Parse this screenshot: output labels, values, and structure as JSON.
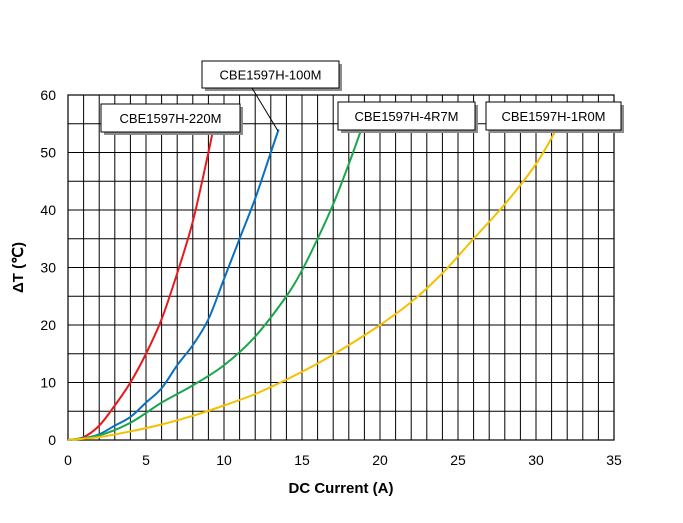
{
  "chart_data": {
    "type": "line",
    "title": "",
    "xlabel": "DC Current (A)",
    "ylabel": "ΔT (℃)",
    "xlim": [
      0,
      35
    ],
    "ylim": [
      0,
      60
    ],
    "x_ticks": [
      0,
      5,
      10,
      15,
      20,
      25,
      30,
      35
    ],
    "y_ticks": [
      0,
      10,
      20,
      30,
      40,
      50,
      60
    ],
    "grid": true,
    "legend": "callout labels near curve ends",
    "series": [
      {
        "name": "CBE1597H-220M",
        "color": "#e8191c",
        "x": [
          0,
          1,
          2,
          3,
          4,
          5,
          6,
          7,
          8,
          9,
          9.3
        ],
        "y": [
          0,
          0.5,
          2.5,
          6,
          10,
          15,
          21,
          29,
          38,
          50,
          54
        ]
      },
      {
        "name": "CBE1597H-100M",
        "color": "#0a70c0",
        "x": [
          0,
          1,
          2,
          3,
          4,
          5,
          6,
          7,
          8,
          9,
          10,
          11,
          12,
          13,
          13.5
        ],
        "y": [
          0,
          0.3,
          1,
          2.5,
          4,
          6.5,
          9,
          13,
          16.5,
          21,
          28,
          35,
          42,
          50,
          54
        ]
      },
      {
        "name": "CBE1597H-4R7M",
        "color": "#1aa64a",
        "x": [
          0,
          2,
          4,
          6,
          8,
          10,
          12,
          14,
          15,
          16,
          17,
          18,
          18.8
        ],
        "y": [
          0,
          0.8,
          3,
          6.5,
          9.5,
          13,
          18,
          25,
          29.5,
          35,
          41,
          48,
          54
        ]
      },
      {
        "name": "CBE1597H-1R0M",
        "color": "#f5c000",
        "x": [
          0,
          2,
          4,
          6,
          8,
          10,
          12,
          14,
          16,
          18,
          20,
          22,
          24,
          26,
          28,
          30,
          31.3
        ],
        "y": [
          0,
          0.5,
          1.5,
          2.7,
          4.2,
          6,
          8,
          10.5,
          13.3,
          16.5,
          20,
          24,
          29,
          35,
          41,
          48,
          54
        ]
      }
    ]
  }
}
